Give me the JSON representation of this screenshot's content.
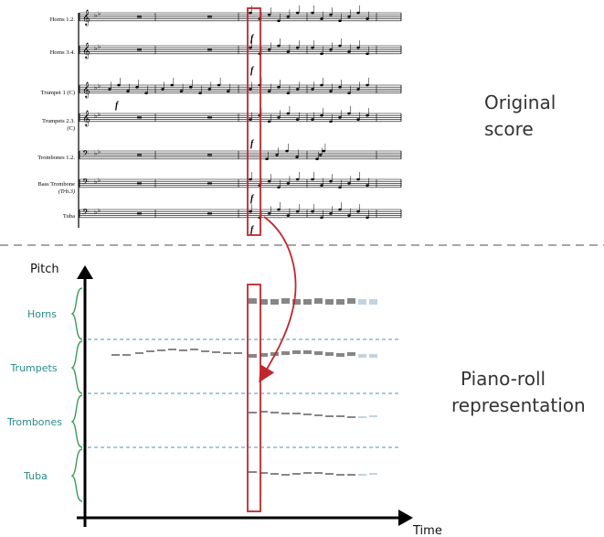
{
  "score": {
    "instruments": [
      {
        "label": "Horns 1.2.",
        "clef": "treble"
      },
      {
        "label": "Horns 3.4.",
        "clef": "treble"
      },
      {
        "label": "Trumpet 1 (C)",
        "clef": "treble"
      },
      {
        "label": "Trumpets 2.3.",
        "sublabel": "(C)",
        "clef": "treble"
      },
      {
        "label": "Trombones 1.2.",
        "clef": "bass"
      },
      {
        "label": "Bass Trombone",
        "sublabel": "(Trb.3)",
        "clef": "bass"
      },
      {
        "label": "Tuba",
        "clef": "bass"
      }
    ],
    "dynamic": "f",
    "caption_line1": "Original",
    "caption_line2": "score"
  },
  "pianoroll": {
    "y_axis_label": "Pitch",
    "x_axis_label": "Time",
    "groups": [
      "Horns",
      "Trumpets",
      "Trombones",
      "Tuba"
    ],
    "caption_line1": "Piano-roll",
    "caption_line2": "representation"
  },
  "colors": {
    "highlight": "#c0272d",
    "group_label": "#2a8a8a",
    "divider": "#4a9ab0",
    "section_divider": "#888888",
    "note_faded": "#8fb0c8"
  }
}
